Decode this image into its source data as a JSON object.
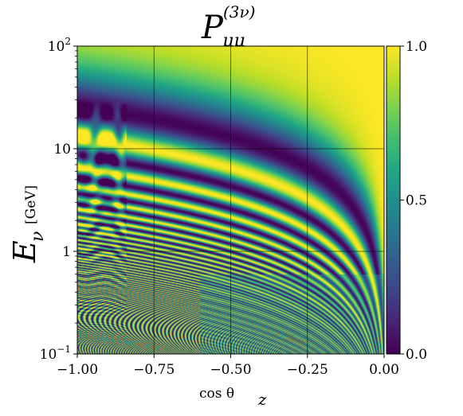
{
  "chart_data": {
    "type": "heatmap",
    "title": "P_μμ^(3ν)",
    "title_main": "P",
    "title_sub": "μμ",
    "title_sup": "(3ν)",
    "xlabel": "cos θ_z",
    "xlabel_main": "cos θ",
    "xlabel_sub": "z",
    "ylabel": "E_ν [GeV]",
    "ylabel_main": "E",
    "ylabel_sub": "ν",
    "ylabel_unit": "[GeV]",
    "xlim": [
      -1.0,
      0.0
    ],
    "ylim": [
      0.1,
      100
    ],
    "yscale": "log",
    "grid": true,
    "x_ticks": [
      {
        "value": -1.0,
        "label": "−1.00"
      },
      {
        "value": -0.75,
        "label": "−0.75"
      },
      {
        "value": -0.5,
        "label": "−0.50"
      },
      {
        "value": -0.25,
        "label": "−0.25"
      },
      {
        "value": 0.0,
        "label": "0.00"
      }
    ],
    "y_ticks": [
      {
        "value": 0.1,
        "base": "10",
        "exp": "−1"
      },
      {
        "value": 1,
        "base": "1",
        "exp": ""
      },
      {
        "value": 10,
        "base": "10",
        "exp": ""
      },
      {
        "value": 100,
        "base": "10",
        "exp": "2"
      }
    ],
    "colorbar": {
      "colormap": "viridis",
      "range": [
        0.0,
        1.0
      ],
      "ticks": [
        {
          "value": 1.0,
          "label": "1.0"
        },
        {
          "value": 0.5,
          "label": "0.5"
        },
        {
          "value": 0.0,
          "label": "0.0"
        }
      ]
    },
    "description_of_values": "muon-neutrino survival probability; oscillation bands curving toward cos θ_z = 0, core-crossing transition near cos θ_z ≈ -0.84",
    "core_transition_cos": -0.84
  },
  "colors": {
    "viridis_low": "#440154",
    "viridis_mid": "#21918c",
    "viridis_high": "#fde725",
    "grid": "#000000"
  }
}
